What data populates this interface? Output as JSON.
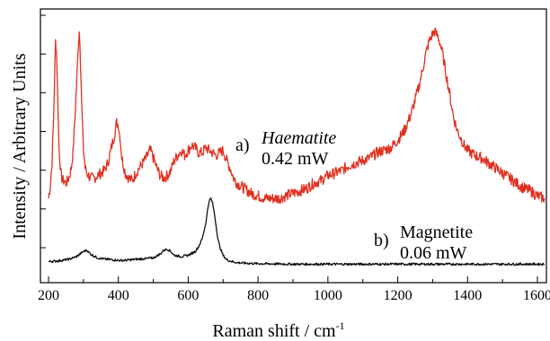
{
  "chart_data": {
    "type": "line",
    "xlabel": "Raman shift / cm",
    "xlabel_superscript": "-1",
    "ylabel": "Intensity / Arbitrary Units",
    "xlim": [
      190,
      1630
    ],
    "ylim": [
      0,
      100
    ],
    "xticks": [
      200,
      400,
      600,
      800,
      1000,
      1200,
      1400,
      1600
    ],
    "yticks_count": 7,
    "y_tick_labels_shown": false,
    "grid": false,
    "colors": {
      "haematite": "#e03020",
      "magnetite": "#111111"
    },
    "series": [
      {
        "name": "Haematite",
        "annotation_prefix": "a)",
        "annotation_sub": "0.42 mW",
        "x": [
          200,
          205,
          210,
          215,
          220,
          223,
          226,
          230,
          235,
          240,
          245,
          250,
          255,
          260,
          265,
          270,
          275,
          280,
          285,
          288,
          290,
          295,
          300,
          305,
          310,
          315,
          320,
          330,
          340,
          350,
          360,
          370,
          380,
          390,
          395,
          400,
          405,
          410,
          420,
          430,
          440,
          450,
          460,
          470,
          480,
          490,
          495,
          500,
          505,
          510,
          520,
          530,
          540,
          550,
          560,
          570,
          580,
          590,
          600,
          610,
          620,
          630,
          640,
          650,
          660,
          670,
          680,
          690,
          700,
          710,
          720,
          730,
          740,
          760,
          780,
          800,
          820,
          840,
          860,
          880,
          900,
          920,
          940,
          960,
          980,
          1000,
          1020,
          1040,
          1060,
          1080,
          1100,
          1120,
          1140,
          1160,
          1180,
          1200,
          1220,
          1240,
          1260,
          1270,
          1280,
          1290,
          1300,
          1305,
          1310,
          1315,
          1320,
          1330,
          1340,
          1350,
          1360,
          1370,
          1380,
          1390,
          1400,
          1410,
          1420,
          1440,
          1460,
          1480,
          1500,
          1520,
          1540,
          1560,
          1580,
          1600,
          1620
        ],
        "values": [
          28,
          33,
          42,
          62,
          90,
          86,
          70,
          48,
          38,
          35,
          35,
          34,
          35,
          37,
          40,
          46,
          58,
          72,
          88,
          94,
          90,
          65,
          47,
          40,
          38,
          37,
          36,
          36,
          37,
          38,
          39,
          42,
          48,
          54,
          58,
          57,
          52,
          44,
          38,
          36,
          35,
          38,
          40,
          42,
          44,
          47,
          46,
          44,
          42,
          40,
          37,
          36,
          37,
          39,
          43,
          45,
          47,
          45,
          47,
          49,
          48,
          46,
          46,
          48,
          47,
          46,
          45,
          46,
          47,
          43,
          40,
          36,
          34,
          32,
          30,
          29,
          28,
          28,
          28,
          29,
          30,
          31,
          32,
          34,
          35,
          37,
          38,
          39,
          41,
          42,
          43,
          44,
          46,
          47,
          48,
          51,
          55,
          62,
          72,
          78,
          85,
          90,
          93,
          94,
          93,
          92,
          90,
          84,
          76,
          68,
          60,
          55,
          52,
          49,
          47,
          46,
          45,
          44,
          42,
          40,
          38,
          36,
          34,
          32,
          31,
          29,
          28
        ]
      },
      {
        "name": "Magnetite",
        "annotation_prefix": "b)",
        "annotation_sub": "0.06 mW",
        "x": [
          200,
          220,
          240,
          260,
          280,
          300,
          310,
          320,
          340,
          360,
          380,
          400,
          420,
          440,
          460,
          480,
          500,
          520,
          530,
          540,
          550,
          560,
          580,
          600,
          620,
          630,
          640,
          650,
          655,
          660,
          665,
          670,
          675,
          680,
          685,
          690,
          700,
          710,
          720,
          740,
          760,
          800,
          900,
          1000,
          1100,
          1200,
          1300,
          1400,
          1500,
          1600,
          1620
        ],
        "values": [
          3,
          3.2,
          3.5,
          4,
          5,
          7,
          7.5,
          6,
          4.5,
          4,
          3.8,
          3.5,
          3.5,
          3.8,
          4,
          4.2,
          4.5,
          6,
          7.5,
          8,
          7,
          5.5,
          5,
          5.5,
          7,
          9,
          12,
          18,
          23,
          27,
          28,
          26,
          22,
          17,
          12,
          9,
          5.5,
          3.8,
          3.2,
          2.6,
          2.4,
          2.2,
          2,
          2,
          2,
          2,
          2,
          2,
          2,
          2,
          2
        ]
      }
    ]
  }
}
